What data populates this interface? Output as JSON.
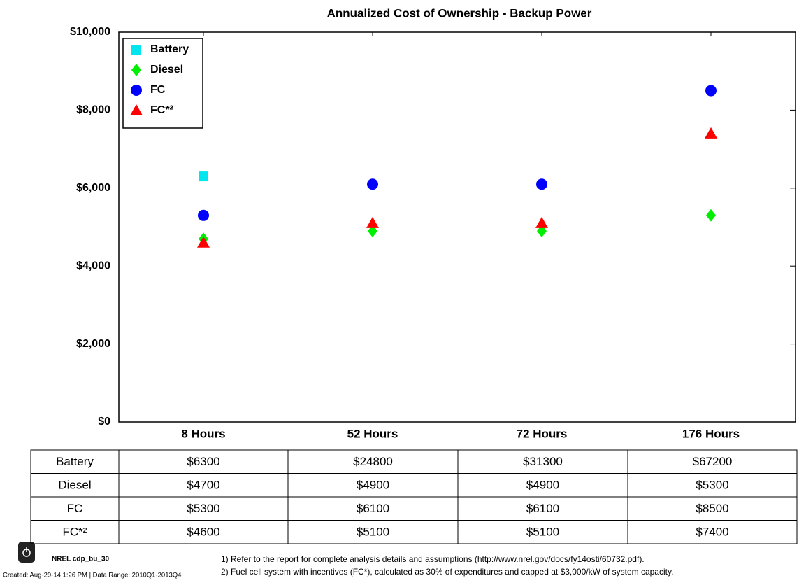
{
  "chart_data": {
    "type": "scatter",
    "title": "Annualized Cost of Ownership - Backup Power",
    "categories": [
      "8 Hours",
      "52 Hours",
      "72 Hours",
      "176 Hours"
    ],
    "series": [
      {
        "name": "Battery",
        "color": "#00e5ee",
        "marker": "square",
        "values": [
          6300,
          null,
          null,
          null
        ]
      },
      {
        "name": "Diesel",
        "color": "#00ee00",
        "marker": "diamond",
        "values": [
          4700,
          4900,
          4900,
          5300
        ]
      },
      {
        "name": "FC",
        "color": "#0000ff",
        "marker": "circle",
        "values": [
          5300,
          6100,
          6100,
          8500
        ]
      },
      {
        "name": "FC*²",
        "color": "#ff0000",
        "marker": "triangle",
        "values": [
          4600,
          5100,
          5100,
          7400
        ]
      }
    ],
    "ylim": [
      0,
      10000
    ],
    "yticks": [
      {
        "value": 0,
        "label": "$0"
      },
      {
        "value": 2000,
        "label": "$2,000"
      },
      {
        "value": 4000,
        "label": "$4,000"
      },
      {
        "value": 6000,
        "label": "$6,000"
      },
      {
        "value": 8000,
        "label": "$8,000"
      },
      {
        "value": 10000,
        "label": "$10,000"
      }
    ],
    "grid": false,
    "legend": "upper left"
  },
  "table": {
    "rows": [
      [
        "Battery",
        "$6300",
        "$24800",
        "$31300",
        "$67200"
      ],
      [
        "Diesel",
        "$4700",
        "$4900",
        "$4900",
        "$5300"
      ],
      [
        "FC",
        "$5300",
        "$6100",
        "$6100",
        "$8500"
      ],
      [
        "FC*²",
        "$4600",
        "$5100",
        "$5100",
        "$7400"
      ]
    ]
  },
  "footer": {
    "id": "NREL cdp_bu_30",
    "created": "Created: Aug-29-14  1:26 PM | Data Range: 2010Q1-2013Q4",
    "notes": [
      "1) Refer to the report for complete analysis details and assumptions (http://www.nrel.gov/docs/fy14osti/60732.pdf).",
      "2) Fuel cell system with incentives (FC*), calculated as 30% of expenditures and capped at $3,000/kW of system capacity."
    ]
  }
}
